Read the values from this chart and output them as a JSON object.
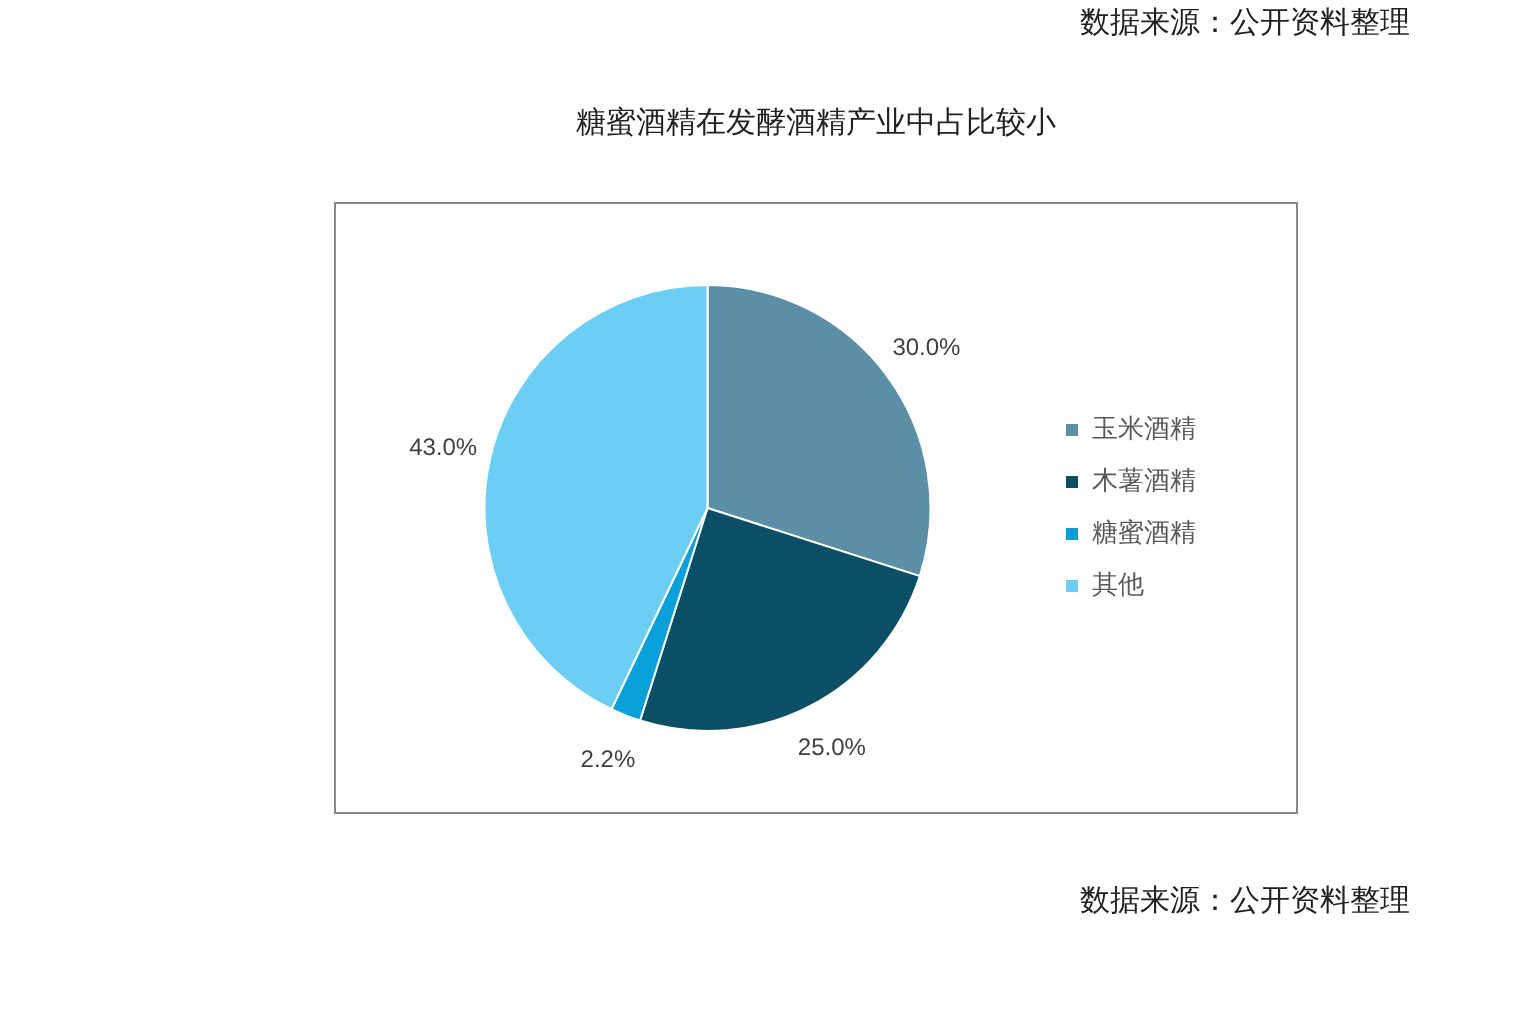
{
  "chart_data": {
    "type": "pie",
    "title": "糖蜜酒精在发酵酒精产业中占比较小",
    "categories": [
      "玉米酒精",
      "木薯酒精",
      "糖蜜酒精",
      "其他"
    ],
    "values": [
      30.0,
      25.0,
      2.2,
      43.0
    ],
    "colors": [
      "#5b8fa8",
      "#0b4f66",
      "#08a0d8",
      "#6ccef5"
    ],
    "value_labels": [
      "30.0%",
      "25.0%",
      "2.2%",
      "43.0%"
    ],
    "legend": "right",
    "annotations": [
      "数据来源：公开资料整理",
      "数据来源：公开资料整理"
    ]
  }
}
